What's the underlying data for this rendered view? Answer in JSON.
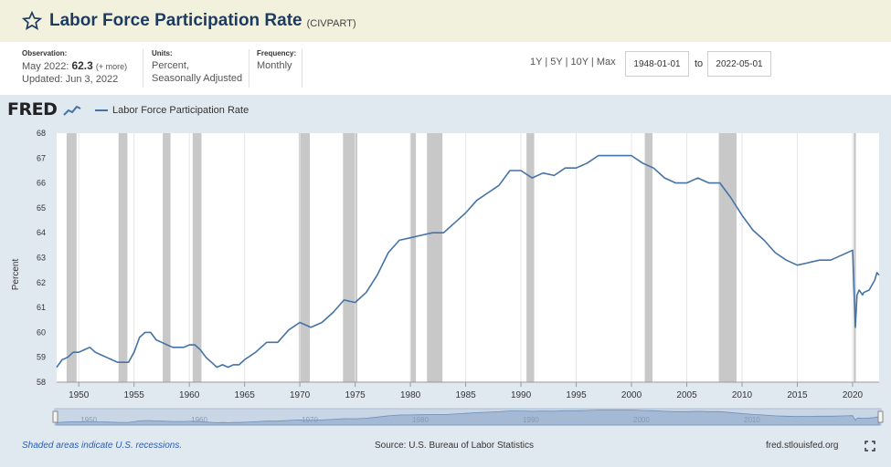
{
  "header": {
    "title": "Labor Force Participation Rate",
    "code": "(CIVPART)"
  },
  "info": {
    "observation_label": "Observation:",
    "observation_date": "May 2022:",
    "observation_value": "62.3",
    "observation_more": "(+ more)",
    "updated": "Updated: Jun 3, 2022",
    "units_label": "Units:",
    "units_line1": "Percent,",
    "units_line2": "Seasonally Adjusted",
    "frequency_label": "Frequency:",
    "frequency_value": "Monthly"
  },
  "ranges": [
    "1Y",
    "5Y",
    "10Y",
    "Max"
  ],
  "date_from": "1948-01-01",
  "date_to_label": "to",
  "date_to": "2022-05-01",
  "logo": "FRED",
  "legend_label": "Labor Force Participation Rate",
  "footer": {
    "recession_note": "Shaded areas indicate U.S. recessions.",
    "source": "Source: U.S. Bureau of Labor Statistics",
    "site": "fred.stlouisfed.org"
  },
  "colors": {
    "line": "#4572a7",
    "recession": "#c8c8c8",
    "panel": "#e1e9f0"
  },
  "chart_data": {
    "type": "line",
    "ylabel": "Percent",
    "xlabel": "",
    "xlim": [
      1948.0,
      2022.4
    ],
    "ylim": [
      58,
      68
    ],
    "yticks": [
      58,
      59,
      60,
      61,
      62,
      63,
      64,
      65,
      66,
      67,
      68
    ],
    "xticks": [
      1950,
      1955,
      1960,
      1965,
      1970,
      1975,
      1980,
      1985,
      1990,
      1995,
      2000,
      2005,
      2010,
      2015,
      2020
    ],
    "grid": "vertical",
    "recessions": [
      [
        1948.9,
        1949.8
      ],
      [
        1953.6,
        1954.4
      ],
      [
        1957.6,
        1958.3
      ],
      [
        1960.3,
        1961.1
      ],
      [
        1969.9,
        1970.9
      ],
      [
        1973.9,
        1975.2
      ],
      [
        1980.0,
        1980.5
      ],
      [
        1981.5,
        1982.9
      ],
      [
        1990.5,
        1991.2
      ],
      [
        2001.2,
        2001.9
      ],
      [
        2007.9,
        2009.5
      ],
      [
        2020.1,
        2020.3
      ]
    ],
    "series": [
      {
        "name": "Labor Force Participation Rate",
        "x": [
          1948.0,
          1948.5,
          1949.0,
          1949.5,
          1950.0,
          1950.5,
          1951.0,
          1951.5,
          1952.0,
          1952.5,
          1953.0,
          1953.5,
          1954.0,
          1954.5,
          1955.0,
          1955.5,
          1956.0,
          1956.5,
          1957.0,
          1957.5,
          1958.0,
          1958.5,
          1959.0,
          1959.5,
          1960.0,
          1960.5,
          1961.0,
          1961.5,
          1962.0,
          1962.5,
          1963.0,
          1963.5,
          1964.0,
          1964.5,
          1965.0,
          1966.0,
          1967.0,
          1968.0,
          1969.0,
          1970.0,
          1971.0,
          1972.0,
          1973.0,
          1974.0,
          1975.0,
          1976.0,
          1977.0,
          1978.0,
          1979.0,
          1980.0,
          1981.0,
          1982.0,
          1983.0,
          1984.0,
          1985.0,
          1986.0,
          1987.0,
          1988.0,
          1989.0,
          1990.0,
          1991.0,
          1992.0,
          1993.0,
          1994.0,
          1995.0,
          1996.0,
          1997.0,
          1998.0,
          1999.0,
          2000.0,
          2001.0,
          2002.0,
          2003.0,
          2004.0,
          2005.0,
          2006.0,
          2007.0,
          2008.0,
          2009.0,
          2010.0,
          2011.0,
          2012.0,
          2013.0,
          2014.0,
          2015.0,
          2016.0,
          2017.0,
          2018.0,
          2019.0,
          2020.0,
          2020.25,
          2020.4,
          2020.6,
          2020.9,
          2021.0,
          2021.5,
          2022.0,
          2022.2,
          2022.4
        ],
        "values": [
          58.6,
          58.9,
          59.0,
          59.2,
          59.2,
          59.3,
          59.4,
          59.2,
          59.1,
          59.0,
          58.9,
          58.8,
          58.8,
          58.8,
          59.2,
          59.8,
          60.0,
          60.0,
          59.7,
          59.6,
          59.5,
          59.4,
          59.4,
          59.4,
          59.5,
          59.5,
          59.3,
          59.0,
          58.8,
          58.6,
          58.7,
          58.6,
          58.7,
          58.7,
          58.9,
          59.2,
          59.6,
          59.6,
          60.1,
          60.4,
          60.2,
          60.4,
          60.8,
          61.3,
          61.2,
          61.6,
          62.3,
          63.2,
          63.7,
          63.8,
          63.9,
          64.0,
          64.0,
          64.4,
          64.8,
          65.3,
          65.6,
          65.9,
          66.5,
          66.5,
          66.2,
          66.4,
          66.3,
          66.6,
          66.6,
          66.8,
          67.1,
          67.1,
          67.1,
          67.1,
          66.8,
          66.6,
          66.2,
          66.0,
          66.0,
          66.2,
          66.0,
          66.0,
          65.4,
          64.7,
          64.1,
          63.7,
          63.2,
          62.9,
          62.7,
          62.8,
          62.9,
          62.9,
          63.1,
          63.3,
          60.2,
          61.5,
          61.7,
          61.5,
          61.6,
          61.7,
          62.1,
          62.4,
          62.3
        ]
      }
    ]
  },
  "navigator_labels": [
    "1950",
    "1960",
    "1970",
    "1980",
    "1990",
    "2000",
    "2010"
  ]
}
